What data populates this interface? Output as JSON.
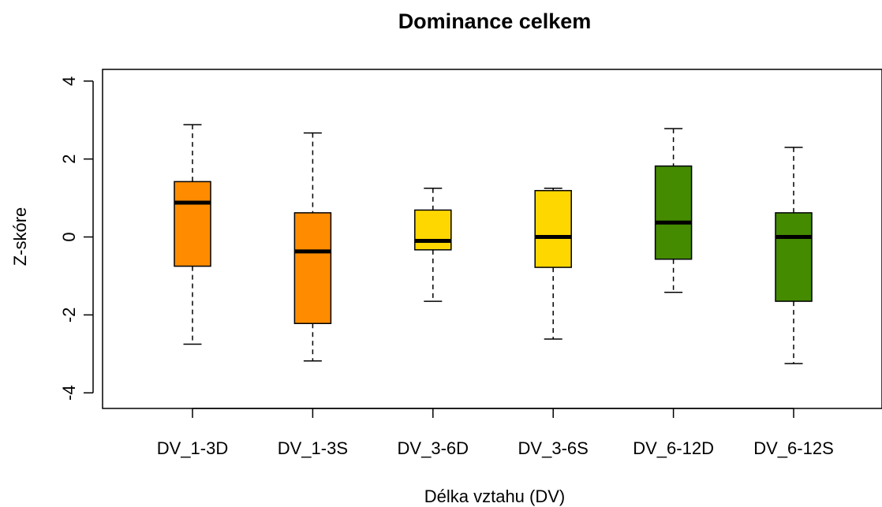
{
  "chart_data": {
    "type": "boxplot",
    "title": "Dominance celkem",
    "xlabel": "Délka vztahu (DV)",
    "ylabel": "Z-skóre",
    "ylim": [
      -4.4,
      4.3
    ],
    "y_ticks": [
      -4,
      -2,
      0,
      2,
      4
    ],
    "y_tick_labels": [
      "-4",
      "-2",
      "0",
      "2",
      "4"
    ],
    "grid": false,
    "legend": "none",
    "categories": [
      "DV_1-3D",
      "DV_1-3S",
      "DV_3-6D",
      "DV_3-6S",
      "DV_6-12D",
      "DV_6-12S"
    ],
    "boxes": [
      {
        "category": "DV_1-3D",
        "min": -2.75,
        "q1": -0.75,
        "median": 0.88,
        "q3": 1.42,
        "max": 2.88,
        "color": "#ff8c00"
      },
      {
        "category": "DV_1-3S",
        "min": -3.18,
        "q1": -2.22,
        "median": -0.37,
        "q3": 0.62,
        "max": 2.67,
        "color": "#ff8c00"
      },
      {
        "category": "DV_3-6D",
        "min": -1.65,
        "q1": -0.33,
        "median": -0.1,
        "q3": 0.69,
        "max": 1.25,
        "color": "#ffd700"
      },
      {
        "category": "DV_3-6S",
        "min": -2.62,
        "q1": -0.78,
        "median": 0.0,
        "q3": 1.19,
        "max": 1.25,
        "color": "#ffd700"
      },
      {
        "category": "DV_6-12D",
        "min": -1.42,
        "q1": -0.57,
        "median": 0.37,
        "q3": 1.82,
        "max": 2.78,
        "color": "#458b00"
      },
      {
        "category": "DV_6-12S",
        "min": -3.25,
        "q1": -1.65,
        "median": 0.0,
        "q3": 0.62,
        "max": 2.3,
        "color": "#458b00"
      }
    ]
  }
}
